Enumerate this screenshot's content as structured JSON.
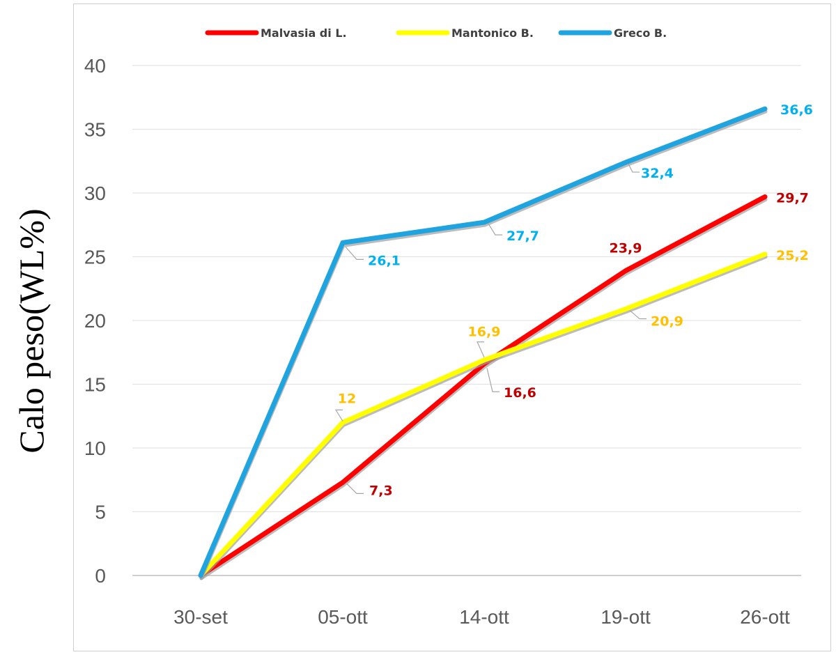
{
  "chart_data": {
    "type": "line",
    "title": "",
    "xlabel": "",
    "ylabel": "Calo peso(WL%)",
    "categories": [
      "30-set",
      "05-ott",
      "14-ott",
      "19-ott",
      "26-ott"
    ],
    "ylim": [
      0,
      40
    ],
    "yticks": [
      0,
      5,
      10,
      15,
      20,
      25,
      30,
      35,
      40
    ],
    "grid": true,
    "legend_position": "top",
    "series": [
      {
        "name": "Malvasia di L.",
        "color": "#ff0000",
        "label_color": "#c00000",
        "values": [
          0,
          7.3,
          16.6,
          23.9,
          29.7
        ],
        "labels": [
          "",
          "7,3",
          "16,6",
          "23,9",
          "29,7"
        ]
      },
      {
        "name": "Mantonico B.",
        "color": "#ffff00",
        "label_color": "#ffc000",
        "values": [
          0,
          12,
          16.9,
          20.9,
          25.2
        ],
        "labels": [
          "",
          "12",
          "16,9",
          "20,9",
          "25,2"
        ]
      },
      {
        "name": "Greco B.",
        "color": "#1fa4e0",
        "label_color": "#00b0f0",
        "values": [
          0,
          26.1,
          27.7,
          32.4,
          36.6
        ],
        "labels": [
          "",
          "26,1",
          "27,7",
          "32,4",
          "36,6"
        ]
      }
    ]
  }
}
